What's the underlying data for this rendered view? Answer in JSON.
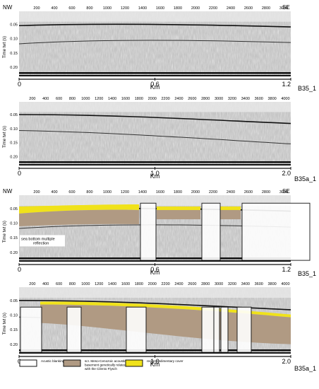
{
  "panels": [
    {
      "id": "p1",
      "left_label": "NW",
      "right_label": "SE",
      "shot_ticks": [
        "200",
        "400",
        "600",
        "800",
        "1000",
        "1200",
        "1400",
        "1600",
        "1800",
        "2000",
        "2200",
        "2400",
        "2600",
        "2800",
        "3000"
      ],
      "y_axis_title": "Time twt (s)",
      "y_ticks": [
        "0.05",
        "0.10",
        "0.15",
        "0.20"
      ],
      "km_ticks": [
        "0",
        "0.6",
        "1.2"
      ],
      "km_label": "Km",
      "profile": "B35_1"
    },
    {
      "id": "p2",
      "left_label": "",
      "right_label": "",
      "shot_ticks": [
        "200",
        "400",
        "600",
        "800",
        "1000",
        "1200",
        "1400",
        "1600",
        "1800",
        "2000",
        "2200",
        "2400",
        "2600",
        "2800",
        "3000",
        "3200",
        "3400",
        "3600",
        "3800",
        "4000"
      ],
      "y_axis_title": "Time twt (s)",
      "y_ticks": [
        "0.05",
        "0.10",
        "0.15",
        "0.20"
      ],
      "km_ticks": [
        "0",
        "1.0",
        "2.0"
      ],
      "km_label": "Km",
      "profile": "B35a_1"
    },
    {
      "id": "p3",
      "left_label": "NW",
      "right_label": "SE",
      "shot_ticks": [
        "200",
        "400",
        "600",
        "800",
        "1000",
        "1200",
        "1400",
        "1600",
        "1800",
        "2000",
        "2200",
        "2400",
        "2600",
        "2800",
        "3000"
      ],
      "y_axis_title": "Time twt (s)",
      "y_ticks": [
        "0.05",
        "0.10",
        "0.15",
        "0.20"
      ],
      "km_ticks": [
        "0",
        "0.6",
        "1.2"
      ],
      "km_label": "Km",
      "profile": "B35_1",
      "annotation": "sea bottom multiple reflection"
    },
    {
      "id": "p4",
      "left_label": "",
      "right_label": "",
      "shot_ticks": [
        "200",
        "400",
        "600",
        "800",
        "1000",
        "1200",
        "1400",
        "1600",
        "1800",
        "2000",
        "2200",
        "2400",
        "2600",
        "2800",
        "3000",
        "3200",
        "3400",
        "3600",
        "3800",
        "4000"
      ],
      "y_axis_title": "Time twt (s)",
      "y_ticks": [
        "0.05",
        "0.10",
        "0.15",
        "0.20"
      ],
      "km_ticks": [
        "0",
        "1.0",
        "2.0"
      ],
      "km_label": "Km",
      "profile": "B35a_1"
    }
  ],
  "legend": [
    {
      "label": "Acustic blanking",
      "color": "#ffffff"
    },
    {
      "label": "scr. Meso-Cenozoic acoustic basement genetically related with the Cilento Flysch",
      "color": "#b09a83"
    },
    {
      "label": "recent sedimentary cover",
      "color": "#f0e21a"
    }
  ]
}
